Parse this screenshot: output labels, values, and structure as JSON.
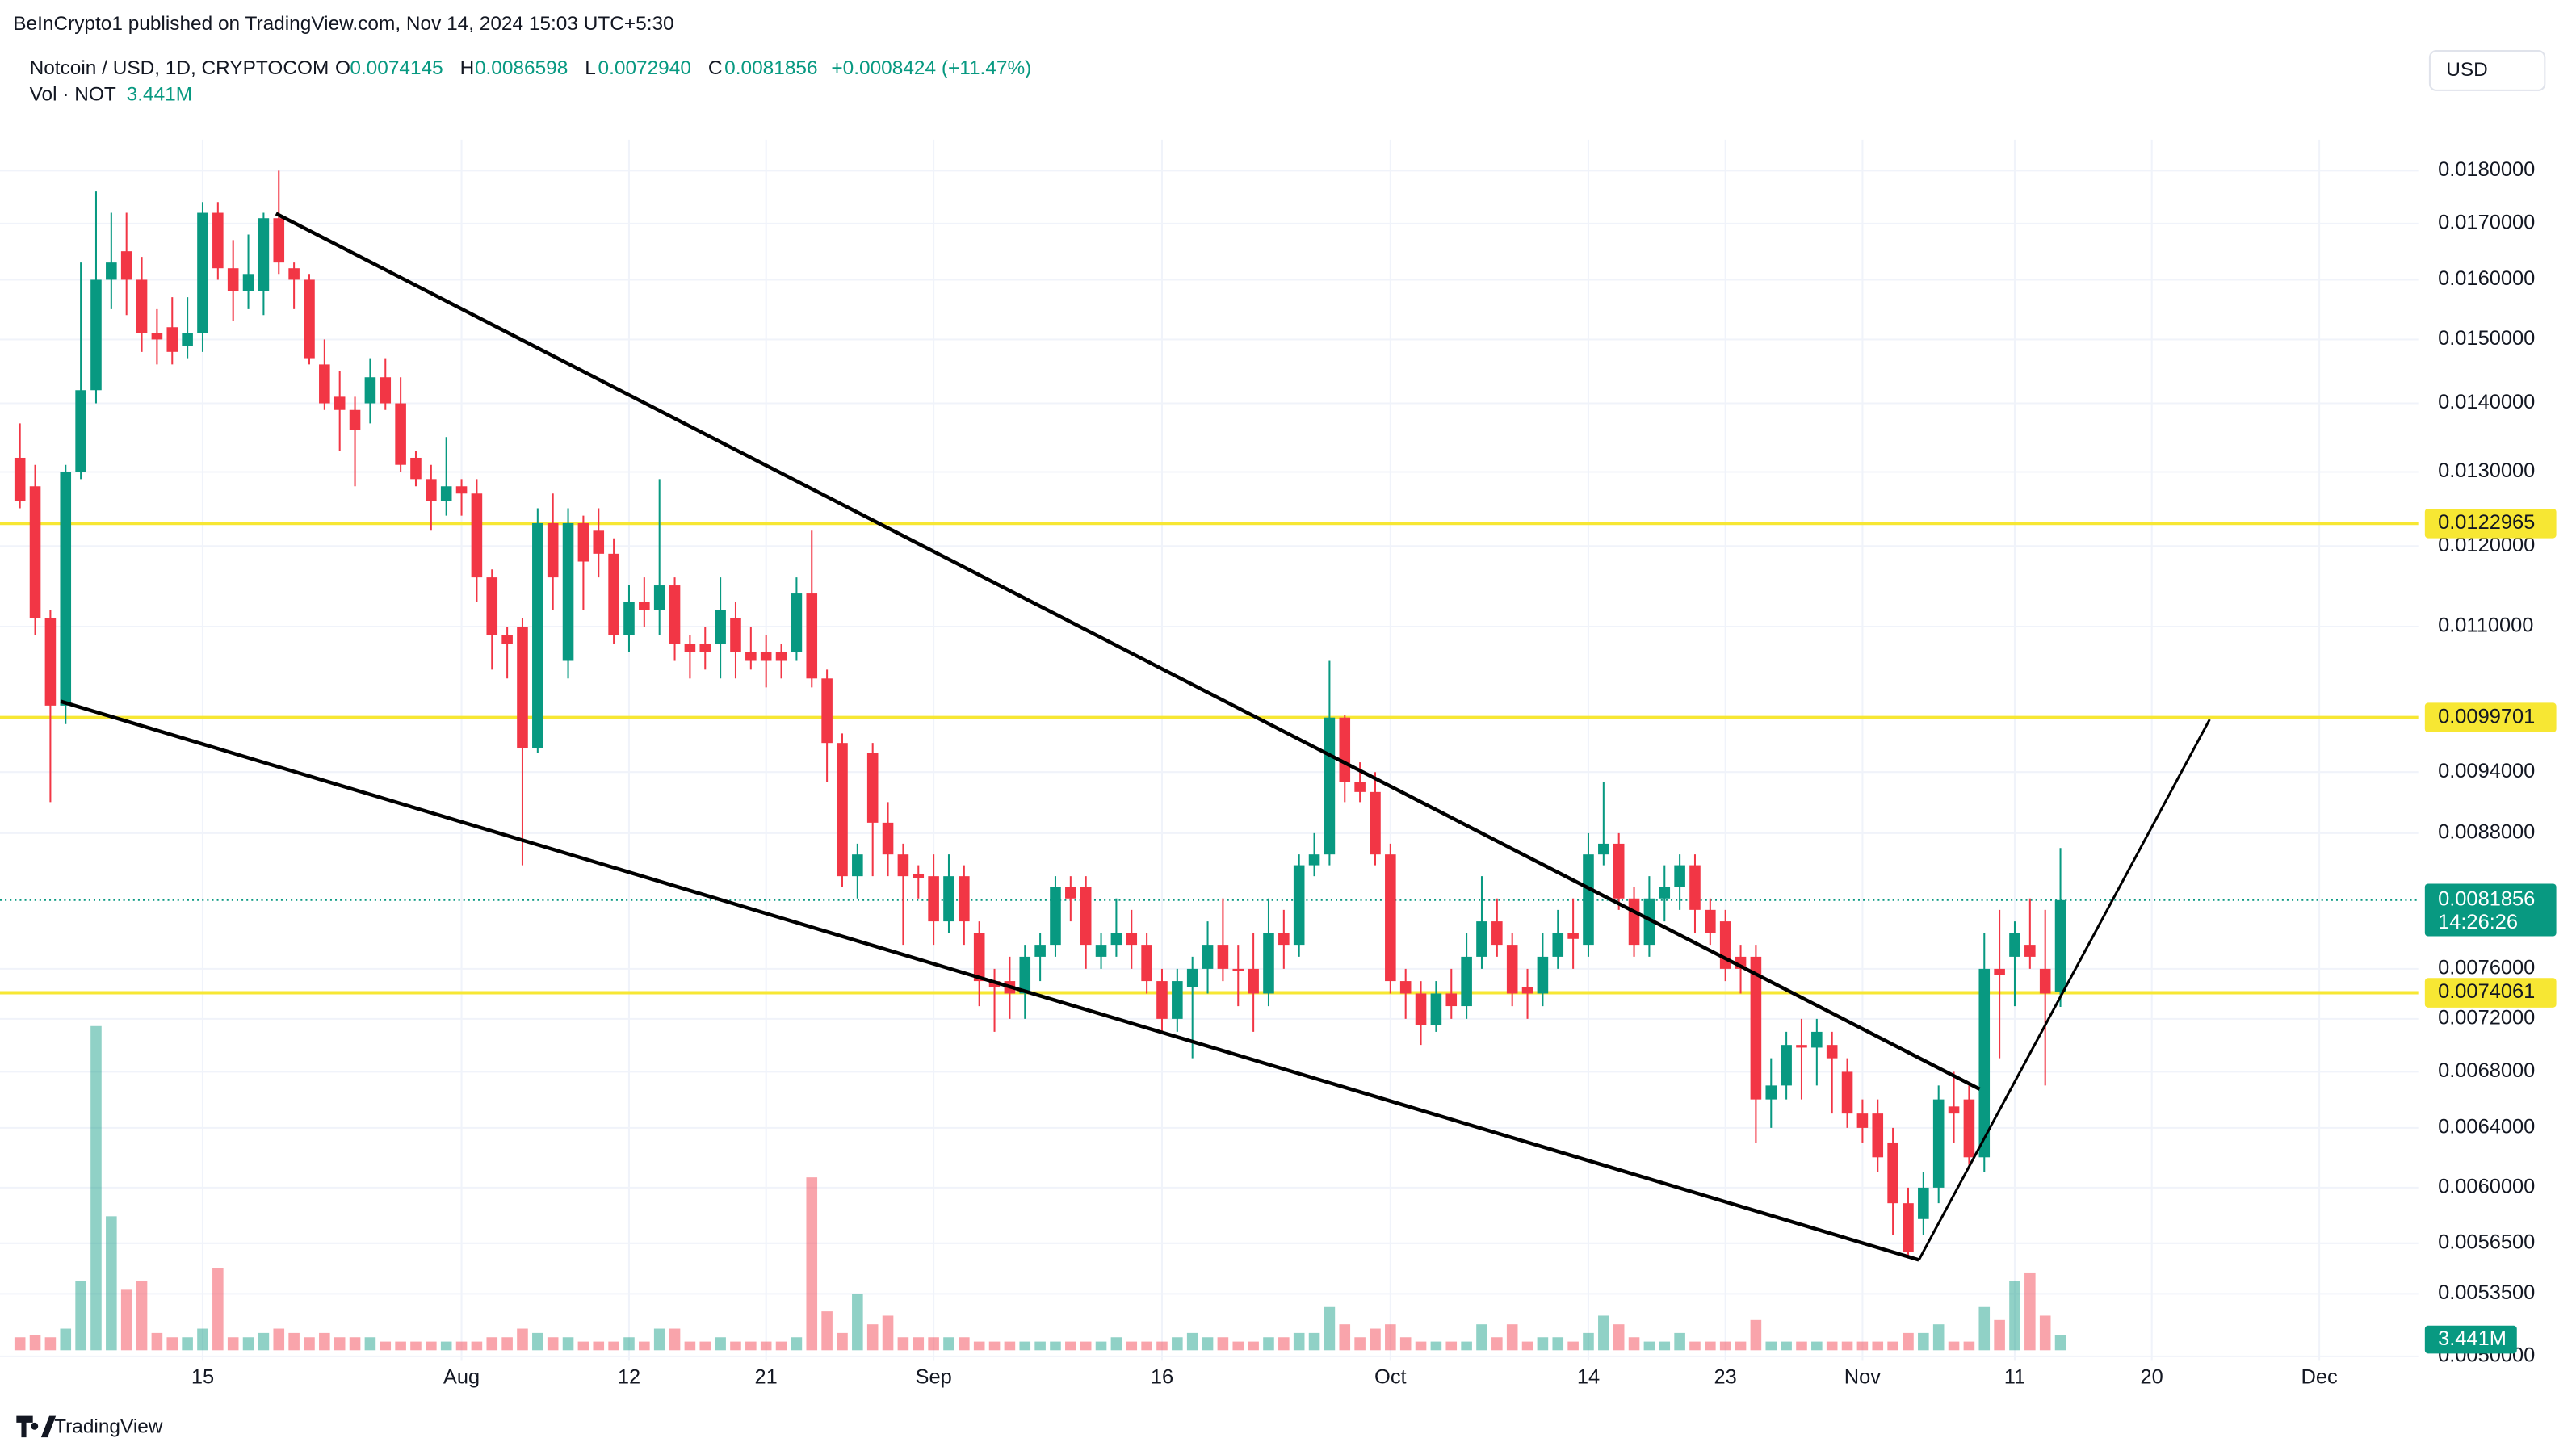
{
  "chart_data": {
    "type": "candlestick",
    "published": "BeInCrypto1 published on TradingView.com, Nov 14, 2024 15:03 UTC+5:30",
    "title": "Notcoin / USD, 1D, CRYPTOCOM",
    "legend": {
      "o_label": "O",
      "open": "0.0074145",
      "h_label": "H",
      "high": "0.0086598",
      "l_label": "L",
      "low": "0.0072940",
      "c_label": "C",
      "close": "0.0081856",
      "change": "+0.0008424 (+11.47%)"
    },
    "currency": "USD",
    "countdown": "14:26:26",
    "watermark": "TradingView",
    "up_color": "#089981",
    "down_color": "#f23645",
    "log_scale": true,
    "grid": true,
    "categories": [
      null,
      null,
      null,
      null,
      null,
      null,
      null,
      null,
      null,
      null,
      null,
      null,
      "15",
      null,
      null,
      null,
      null,
      null,
      null,
      null,
      null,
      null,
      null,
      null,
      null,
      null,
      null,
      null,
      null,
      "Aug",
      null,
      null,
      null,
      null,
      null,
      null,
      null,
      null,
      null,
      null,
      "12",
      null,
      null,
      null,
      null,
      null,
      null,
      null,
      null,
      "21",
      null,
      null,
      null,
      null,
      null,
      null,
      null,
      null,
      null,
      null,
      "Sep",
      null,
      null,
      null,
      null,
      null,
      null,
      null,
      null,
      null,
      null,
      null,
      null,
      null,
      null,
      "16",
      null,
      null,
      null,
      null,
      null,
      null,
      null,
      null,
      null,
      null,
      null,
      null,
      null,
      null,
      "Oct",
      null,
      null,
      null,
      null,
      null,
      null,
      null,
      null,
      null,
      null,
      null,
      null,
      "14",
      null,
      null,
      null,
      null,
      null,
      null,
      null,
      null,
      "23",
      null,
      null,
      null,
      null,
      null,
      null,
      null,
      null,
      "Nov",
      null,
      null,
      null,
      null,
      null,
      null,
      null,
      null,
      null,
      "11",
      null,
      null,
      null,
      null,
      null,
      null,
      null,
      null,
      "20",
      null,
      null,
      null,
      null,
      null,
      null,
      null,
      null,
      null,
      null,
      "Dec",
      null,
      null,
      null,
      null,
      null,
      null
    ],
    "open": [
      0.0132,
      0.0128,
      0.0111,
      0.0101,
      0.013,
      0.0142,
      0.016,
      0.0165,
      0.016,
      0.0151,
      0.0152,
      0.0149,
      0.0151,
      0.0172,
      0.0162,
      0.0158,
      0.0158,
      0.0171,
      0.0162,
      0.016,
      0.0146,
      0.0141,
      0.0139,
      0.014,
      0.0144,
      0.014,
      0.0132,
      0.0129,
      0.0126,
      0.0128,
      0.0127,
      0.0116,
      0.0109,
      0.011,
      0.00965,
      0.0123,
      0.0106,
      0.0123,
      0.0122,
      0.0119,
      0.0109,
      0.0113,
      0.0112,
      0.0115,
      0.0108,
      0.0108,
      0.0108,
      0.0111,
      0.0107,
      0.0107,
      0.0107,
      0.0107,
      0.0114,
      0.0104,
      0.0097,
      0.0084,
      0.0096,
      0.0089,
      0.0086,
      0.00842,
      0.0084,
      0.008,
      0.0084,
      0.0079,
      0.0075,
      0.0075,
      0.0074,
      0.0077,
      0.0078,
      0.0083,
      0.0083,
      0.0077,
      0.0078,
      0.0079,
      0.0078,
      0.0075,
      0.0072,
      0.00745,
      0.0076,
      0.0078,
      0.0076,
      0.0076,
      0.0074,
      0.0079,
      0.0078,
      0.0085,
      0.0086,
      0.00997,
      0.0093,
      0.0092,
      0.0086,
      0.0075,
      0.0074,
      0.00715,
      0.0074,
      0.0073,
      0.0077,
      0.008,
      0.0078,
      0.00745,
      0.0074,
      0.0077,
      0.0079,
      0.0078,
      0.0086,
      0.0087,
      0.0082,
      0.0078,
      0.0082,
      0.0083,
      0.0085,
      0.0081,
      0.008,
      0.0077,
      0.0077,
      0.0066,
      0.0067,
      0.007,
      0.00698,
      0.007,
      0.0068,
      0.0065,
      0.0065,
      0.0063,
      0.0059,
      0.0058,
      0.006,
      0.00655,
      0.0066,
      0.0062,
      0.0076,
      0.0077,
      0.0078,
      0.0076,
      0.0074145,
      null,
      null,
      null,
      null,
      null,
      null,
      null,
      null,
      null,
      null,
      null,
      null,
      null,
      null,
      null,
      null,
      null,
      null,
      null,
      null,
      null,
      null,
      null
    ],
    "high": [
      0.0137,
      0.0131,
      0.0112,
      0.0131,
      0.0163,
      0.0176,
      0.0172,
      0.0172,
      0.0164,
      0.0155,
      0.0157,
      0.0157,
      0.0174,
      0.0174,
      0.0167,
      0.0168,
      0.0172,
      0.018,
      0.0163,
      0.0161,
      0.015,
      0.0145,
      0.0141,
      0.0147,
      0.0147,
      0.0144,
      0.0133,
      0.0131,
      0.0135,
      0.0129,
      0.0129,
      0.0117,
      0.011,
      0.0111,
      0.0125,
      0.0127,
      0.0125,
      0.0124,
      0.0125,
      0.0121,
      0.0115,
      0.0116,
      0.0129,
      0.0116,
      0.0109,
      0.011,
      0.0116,
      0.0113,
      0.011,
      0.0109,
      0.0108,
      0.0116,
      0.0122,
      0.0105,
      0.0098,
      0.0087,
      0.0097,
      0.0091,
      0.0087,
      0.0085,
      0.0086,
      0.0086,
      0.0085,
      0.008,
      0.0076,
      0.0077,
      0.0078,
      0.0079,
      0.0084,
      0.0084,
      0.0084,
      0.0079,
      0.0082,
      0.0081,
      0.0079,
      0.0076,
      0.0076,
      0.0077,
      0.008,
      0.0082,
      0.0078,
      0.0079,
      0.0082,
      0.0081,
      0.0086,
      0.0088,
      0.0106,
      0.01,
      0.0095,
      0.0094,
      0.0087,
      0.0076,
      0.0075,
      0.0075,
      0.0076,
      0.0079,
      0.0084,
      0.0082,
      0.0079,
      0.0076,
      0.0079,
      0.0081,
      0.0082,
      0.0088,
      0.0093,
      0.0088,
      0.0083,
      0.0084,
      0.0085,
      0.0086,
      0.0086,
      0.0082,
      0.0081,
      0.0078,
      0.0078,
      0.0069,
      0.0071,
      0.0072,
      0.0072,
      0.0071,
      0.0069,
      0.0066,
      0.0066,
      0.0064,
      0.006,
      0.0061,
      0.0067,
      0.0068,
      0.0067,
      0.0079,
      0.0081,
      0.008,
      0.0082,
      0.0081,
      0.0086598,
      null,
      null,
      null,
      null,
      null,
      null,
      null,
      null,
      null,
      null,
      null,
      null,
      null,
      null,
      null,
      null,
      null,
      null,
      null,
      null,
      null,
      null,
      null
    ],
    "low": [
      0.0125,
      0.0109,
      0.0091,
      0.0099,
      0.0129,
      0.014,
      0.0155,
      0.0154,
      0.0148,
      0.0146,
      0.0146,
      0.0147,
      0.0148,
      0.016,
      0.0153,
      0.0155,
      0.0154,
      0.0161,
      0.0155,
      0.0146,
      0.0139,
      0.0133,
      0.0128,
      0.0137,
      0.0139,
      0.013,
      0.0128,
      0.0122,
      0.0124,
      0.0124,
      0.0113,
      0.0105,
      0.0104,
      0.0085,
      0.0096,
      0.0112,
      0.0104,
      0.0112,
      0.0116,
      0.0108,
      0.0107,
      0.011,
      0.0109,
      0.0106,
      0.0104,
      0.0105,
      0.0104,
      0.0104,
      0.0105,
      0.0103,
      0.0104,
      0.0106,
      0.0103,
      0.0093,
      0.0083,
      0.0082,
      0.0084,
      0.0084,
      0.0078,
      0.0082,
      0.0078,
      0.0079,
      0.0078,
      0.0073,
      0.0071,
      0.0072,
      0.0072,
      0.0075,
      0.0077,
      0.008,
      0.0076,
      0.0076,
      0.0077,
      0.0076,
      0.0074,
      0.0071,
      0.0071,
      0.0069,
      0.0074,
      0.0075,
      0.0073,
      0.0071,
      0.0073,
      0.0076,
      0.0077,
      0.0084,
      0.0085,
      0.0091,
      0.0091,
      0.0085,
      0.0074,
      0.0072,
      0.007,
      0.0071,
      0.0072,
      0.0072,
      0.0076,
      0.0077,
      0.0073,
      0.0072,
      0.0073,
      0.0076,
      0.0076,
      0.0077,
      0.0085,
      0.0081,
      0.0077,
      0.0077,
      0.008,
      0.0081,
      0.0079,
      0.0078,
      0.0075,
      0.0074,
      0.0063,
      0.0064,
      0.0066,
      0.0066,
      0.0067,
      0.0065,
      0.0064,
      0.0063,
      0.0061,
      0.0057,
      0.00557,
      0.0057,
      0.0059,
      0.0063,
      0.00615,
      0.0061,
      0.0069,
      0.0073,
      0.0076,
      0.0067,
      0.007294,
      null,
      null,
      null,
      null,
      null,
      null,
      null,
      null,
      null,
      null,
      null,
      null,
      null,
      null,
      null,
      null,
      null,
      null,
      null,
      null,
      null,
      null,
      null
    ],
    "close": [
      0.0126,
      0.0111,
      0.0101,
      0.013,
      0.0142,
      0.016,
      0.0163,
      0.016,
      0.0151,
      0.015,
      0.0148,
      0.0151,
      0.0172,
      0.0162,
      0.0158,
      0.0161,
      0.0171,
      0.0163,
      0.016,
      0.0147,
      0.014,
      0.0139,
      0.0136,
      0.0144,
      0.014,
      0.0131,
      0.0129,
      0.0126,
      0.0128,
      0.0127,
      0.0116,
      0.0109,
      0.0108,
      0.00965,
      0.0123,
      0.0116,
      0.0123,
      0.0118,
      0.0119,
      0.0109,
      0.0113,
      0.0112,
      0.0115,
      0.0108,
      0.0107,
      0.0107,
      0.0112,
      0.0107,
      0.0106,
      0.0106,
      0.0106,
      0.0114,
      0.0104,
      0.0097,
      0.0084,
      0.0086,
      0.0089,
      0.0086,
      0.0084,
      0.00838,
      0.008,
      0.0084,
      0.008,
      0.0075,
      0.00745,
      0.0074,
      0.0077,
      0.0078,
      0.0083,
      0.0082,
      0.0078,
      0.0078,
      0.0079,
      0.0078,
      0.0075,
      0.0072,
      0.0075,
      0.0076,
      0.0078,
      0.0076,
      0.00758,
      0.0074,
      0.0079,
      0.0078,
      0.0085,
      0.0086,
      0.00997,
      0.0093,
      0.0092,
      0.0086,
      0.0075,
      0.0074,
      0.00715,
      0.0074,
      0.0073,
      0.0077,
      0.008,
      0.0078,
      0.0074,
      0.0074,
      0.0077,
      0.0079,
      0.00785,
      0.0086,
      0.0087,
      0.0082,
      0.0078,
      0.0082,
      0.0083,
      0.0085,
      0.0081,
      0.0079,
      0.0076,
      0.0076,
      0.0066,
      0.0067,
      0.007,
      0.00698,
      0.0071,
      0.0069,
      0.0065,
      0.0064,
      0.0062,
      0.0059,
      0.0056,
      0.006,
      0.0066,
      0.0065,
      0.0062,
      0.0076,
      0.00755,
      0.0079,
      0.0077,
      0.0074,
      0.0081856,
      null,
      null,
      null,
      null,
      null,
      null,
      null,
      null,
      null,
      null,
      null,
      null,
      null,
      null,
      null,
      null,
      null,
      null,
      null,
      null,
      null,
      null,
      null
    ],
    "volume": {
      "name": "Vol · NOT",
      "values": [
        3,
        3.5,
        3,
        5,
        16,
        75,
        31,
        14,
        16,
        4,
        3,
        3,
        5,
        19,
        3,
        3,
        4,
        5,
        4,
        3,
        4,
        3,
        3,
        3,
        2,
        2,
        2,
        2,
        2,
        2,
        2,
        3,
        3,
        5,
        4,
        3,
        3,
        2,
        2,
        2,
        3,
        2,
        5,
        5,
        2,
        2,
        3,
        2,
        2,
        2,
        2,
        3,
        40,
        9,
        4,
        13,
        6,
        8,
        3,
        3,
        3,
        3,
        3,
        2,
        2,
        2,
        2,
        2,
        2,
        2,
        2,
        2,
        3,
        2,
        2,
        2,
        3,
        4,
        3,
        3,
        2,
        2,
        3,
        3,
        4,
        4,
        10,
        6,
        3,
        5,
        6,
        3,
        2,
        2,
        2,
        2,
        6,
        3,
        6,
        2,
        3,
        3,
        2,
        4,
        8,
        6,
        3,
        2,
        2,
        4,
        2,
        2,
        2,
        2,
        7,
        2,
        2,
        2,
        2,
        2,
        2,
        2,
        2,
        2,
        4,
        4,
        6,
        2,
        2,
        10,
        7,
        16,
        18,
        8,
        3.441,
        null,
        null,
        null,
        null,
        null,
        null,
        null,
        null,
        null,
        null,
        null,
        null,
        null,
        null,
        null,
        null,
        null,
        null,
        null,
        null,
        null,
        null,
        null
      ],
      "value_labels": [
        null,
        null,
        null,
        null,
        null,
        null,
        null,
        null,
        null,
        null,
        null,
        null,
        null,
        null,
        null,
        null,
        null,
        null,
        null,
        null,
        null,
        null,
        null,
        null,
        null,
        null,
        null,
        null,
        null,
        null,
        null,
        null,
        null,
        null,
        null,
        null,
        null,
        null,
        null,
        null,
        null,
        null,
        null,
        null,
        null,
        null,
        null,
        null,
        null,
        null,
        null,
        null,
        null,
        null,
        null,
        null,
        null,
        null,
        null,
        null,
        null,
        null,
        null,
        null,
        null,
        null,
        null,
        null,
        null,
        null,
        null,
        null,
        null,
        null,
        null,
        null,
        null,
        null,
        null,
        null,
        null,
        null,
        null,
        null,
        null,
        null,
        null,
        null,
        null,
        null,
        null,
        null,
        null,
        null,
        null,
        null,
        null,
        null,
        null,
        null,
        null,
        null,
        null,
        null,
        null,
        null,
        null,
        null,
        null,
        null,
        null,
        null,
        null,
        null,
        null,
        null,
        null,
        null,
        null,
        null,
        null,
        null,
        null,
        null,
        null,
        null,
        null,
        null,
        null,
        null,
        null,
        null,
        null,
        null,
        "3.441M",
        null,
        null,
        null,
        null,
        null,
        null,
        null,
        null,
        null,
        null,
        null,
        null,
        null,
        null,
        null,
        null,
        null,
        null,
        null,
        null,
        null,
        null,
        null
      ]
    },
    "hlines": [
      {
        "value": 0.0122965,
        "color": "#f7e733"
      },
      {
        "value": 0.0099701,
        "color": "#f7e733"
      },
      {
        "value": 0.0074061,
        "color": "#f7e733"
      }
    ],
    "ylim": [
      0.00498,
      0.01845
    ],
    "yticks": [
      {
        "value": 0.018,
        "label": "0.0180000"
      },
      {
        "value": 0.017,
        "label": "0.0170000"
      },
      {
        "value": 0.016,
        "label": "0.0160000"
      },
      {
        "value": 0.015,
        "label": "0.0150000"
      },
      {
        "value": 0.014,
        "label": "0.0140000"
      },
      {
        "value": 0.013,
        "label": "0.0130000"
      },
      {
        "value": 0.012,
        "label": "0.0120000"
      },
      {
        "value": 0.011,
        "label": "0.0110000"
      },
      {
        "value": 0.0094,
        "label": "0.0094000"
      },
      {
        "value": 0.0088,
        "label": "0.0088000"
      },
      {
        "value": 0.0076,
        "label": "0.0076000"
      },
      {
        "value": 0.0072,
        "label": "0.0072000"
      },
      {
        "value": 0.0068,
        "label": "0.0068000"
      },
      {
        "value": 0.0064,
        "label": "0.0064000"
      },
      {
        "value": 0.006,
        "label": "0.0060000"
      },
      {
        "value": 0.00565,
        "label": "0.0056500"
      },
      {
        "value": 0.00535,
        "label": "0.0053500"
      },
      {
        "value": 0.005,
        "label": "0.0050000"
      }
    ]
  }
}
